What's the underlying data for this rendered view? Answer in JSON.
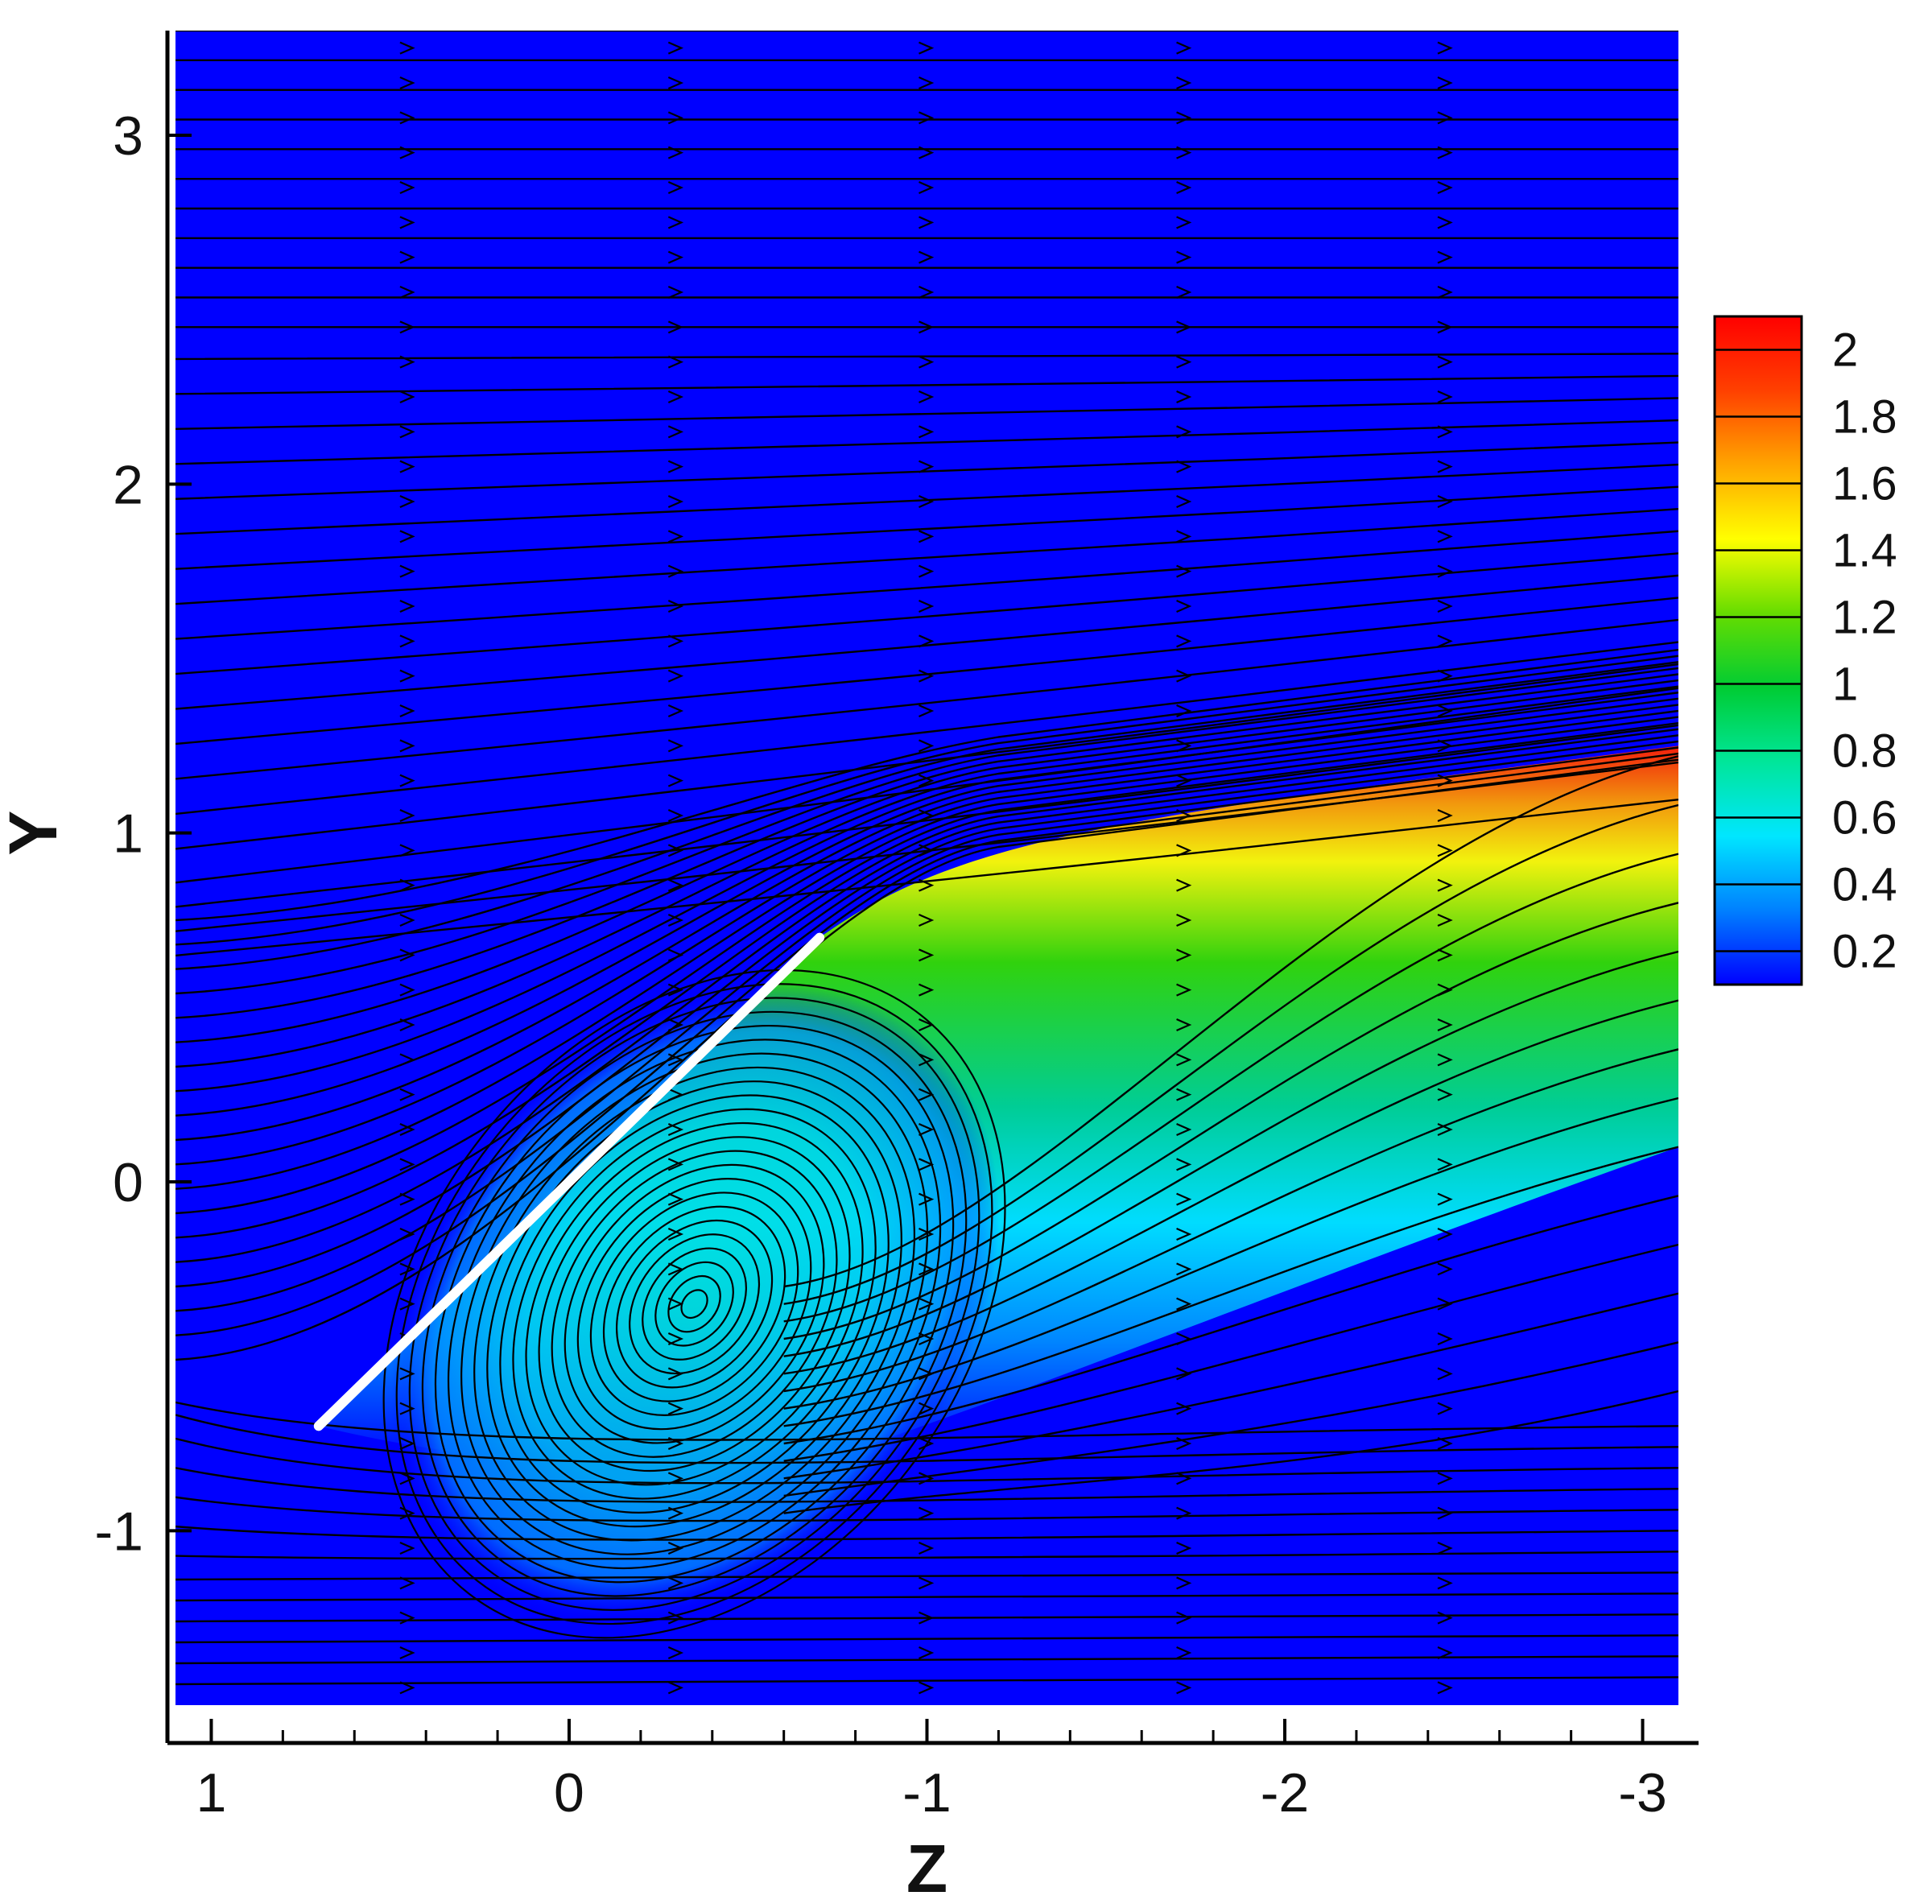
{
  "chart_data": {
    "type": "heatmap",
    "title": "",
    "xlabel": "Z",
    "ylabel": "Y",
    "xlim": [
      1.1,
      -3.1
    ],
    "ylim": [
      -1.5,
      3.3
    ],
    "x_ticks": [
      1,
      0,
      -1,
      -2,
      -3
    ],
    "x_tick_labels": [
      "1",
      "0",
      "-1",
      "-2",
      "-3"
    ],
    "y_ticks": [
      -1,
      0,
      1,
      2,
      3
    ],
    "y_tick_labels": [
      "-1",
      "0",
      "1",
      "2",
      "3"
    ],
    "plate": {
      "z": [
        0.7,
        -0.7
      ],
      "y": [
        -0.7,
        0.7
      ],
      "color": "#ffffff"
    },
    "vortex_core": {
      "z": -0.35,
      "y": -0.35
    },
    "colorbar": {
      "min": 0.1,
      "max": 2.1,
      "levels": [
        0.2,
        0.4,
        0.6,
        0.8,
        1,
        1.2,
        1.4,
        1.6,
        1.8,
        2
      ],
      "level_labels": [
        "0.2",
        "0.4",
        "0.6",
        "0.8",
        "1",
        "1.2",
        "1.4",
        "1.6",
        "1.8",
        "2"
      ],
      "colors": [
        "#0000ff",
        "#0080ff",
        "#00e6ff",
        "#00e69a",
        "#00cc33",
        "#66dd00",
        "#ffff00",
        "#ffa500",
        "#ff4000",
        "#ff0000"
      ]
    },
    "background_color": "#0000ff",
    "grid": false
  }
}
